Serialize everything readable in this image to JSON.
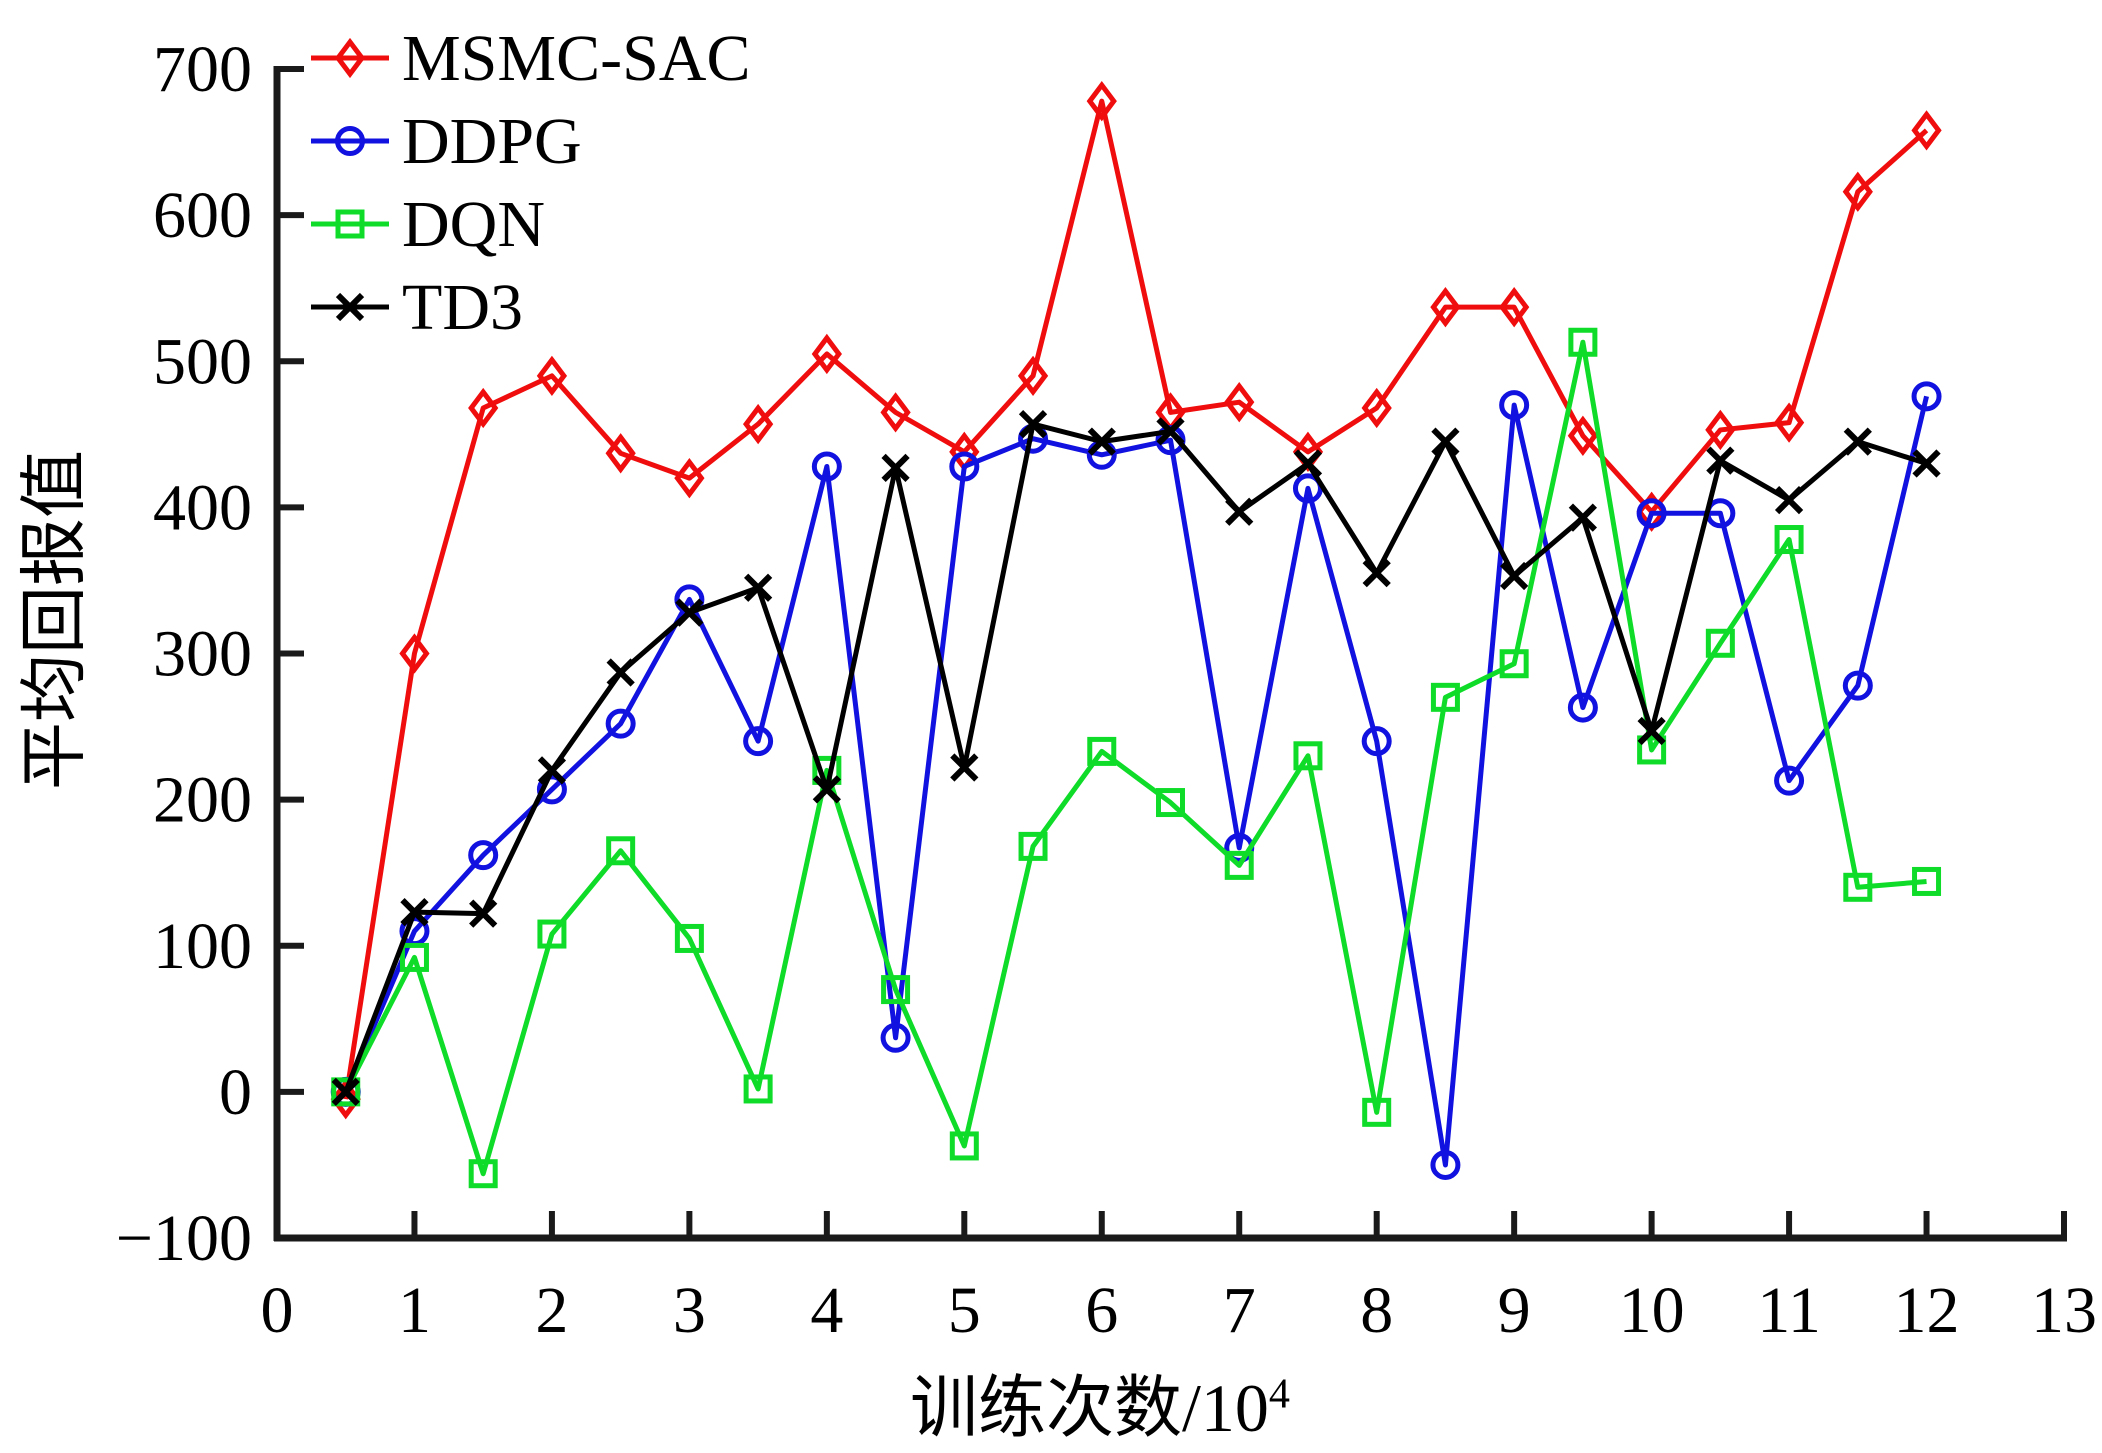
{
  "figure": {
    "background": "#ffffff",
    "axis_color": "#1a1a1a"
  },
  "chart_data": {
    "type": "line",
    "title": "",
    "xlabel_base": "训练次数/10",
    "xlabel_sup": "4",
    "ylabel": "平均回报值",
    "xlim": [
      0,
      13
    ],
    "ylim": [
      -100,
      700
    ],
    "grid": false,
    "legend_position": "top-left-inside",
    "x_ticks": [
      0,
      1,
      2,
      3,
      4,
      5,
      6,
      7,
      8,
      9,
      10,
      11,
      12,
      13
    ],
    "y_ticks": [
      {
        "value": -100,
        "label": "−100"
      },
      {
        "value": 0,
        "label": "0"
      },
      {
        "value": 100,
        "label": "100"
      },
      {
        "value": 200,
        "label": "200"
      },
      {
        "value": 300,
        "label": "300"
      },
      {
        "value": 400,
        "label": "400"
      },
      {
        "value": 500,
        "label": "500"
      },
      {
        "value": 600,
        "label": "600"
      },
      {
        "value": 700,
        "label": "700"
      }
    ],
    "x": [
      0.5,
      1,
      1.5,
      2,
      2.5,
      3,
      3.5,
      4,
      4.5,
      5,
      5.5,
      6,
      6.5,
      7,
      7.5,
      8,
      8.5,
      9,
      9.5,
      10,
      10.5,
      11,
      11.5,
      12
    ],
    "series": [
      {
        "name": "MSMC-SAC",
        "color": "#f00d0d",
        "marker": "diamond",
        "values": [
          -5,
          300,
          468,
          490,
          437,
          420,
          457,
          505,
          465,
          438,
          490,
          678,
          465,
          472,
          438,
          468,
          537,
          537,
          449,
          397,
          453,
          458,
          616,
          658
        ]
      },
      {
        "name": "DDPG",
        "color": "#1111e0",
        "marker": "circle",
        "values": [
          0,
          110,
          162,
          207,
          252,
          337,
          240,
          428,
          37,
          428,
          447,
          436,
          446,
          167,
          413,
          240,
          -50,
          470,
          263,
          396,
          396,
          213,
          278,
          476
        ]
      },
      {
        "name": "DQN",
        "color": "#0edc28",
        "marker": "square",
        "values": [
          0,
          92,
          -56,
          108,
          165,
          105,
          2,
          220,
          70,
          -37,
          168,
          233,
          198,
          155,
          230,
          -14,
          270,
          293,
          513,
          234,
          307,
          378,
          140,
          144
        ]
      },
      {
        "name": "TD3",
        "color": "#000000",
        "marker": "x",
        "values": [
          0,
          123,
          122,
          220,
          287,
          328,
          345,
          207,
          427,
          222,
          457,
          445,
          452,
          397,
          430,
          355,
          445,
          353,
          393,
          247,
          432,
          405,
          445,
          430
        ]
      }
    ]
  }
}
